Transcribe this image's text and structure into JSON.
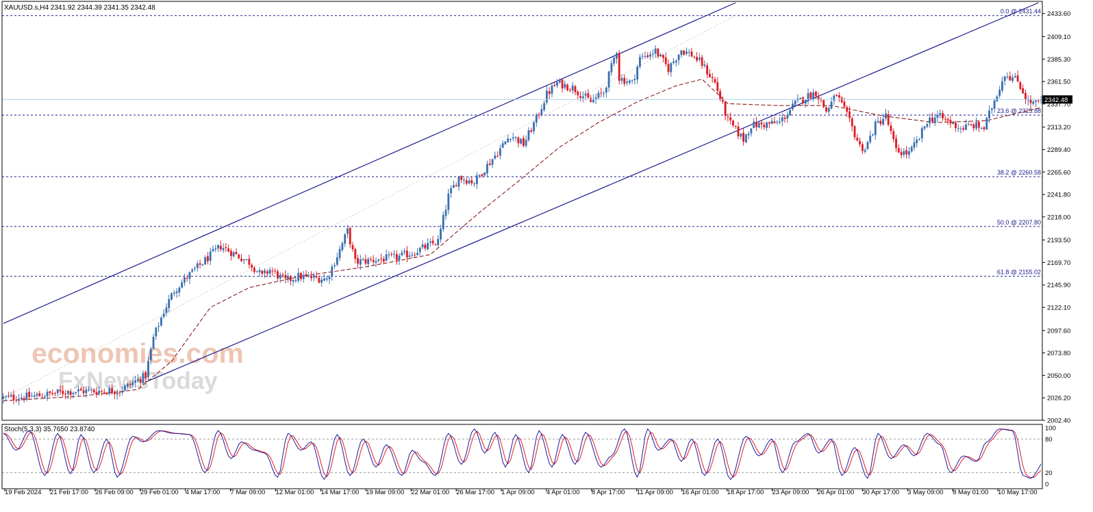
{
  "header": {
    "text": "XAUUSD.s,H4  2341.92 2344.39 2341.35 2342.48"
  },
  "current_price_label": "2342.48",
  "stoch": {
    "label": "Stoch(5,3,3) 35.7650 23.8740",
    "ticks": [
      "100",
      "80",
      "20",
      "0"
    ]
  },
  "watermark": {
    "line1": "economies.com",
    "line2": "FxNewsToday"
  },
  "colors": {
    "bull": "#3a70b0",
    "bear": "#e01b24",
    "channel": "#1a1a8c",
    "fib": "#1a1a8c",
    "ma": "#8b1a1a",
    "stoch_main": "#1a1aa0",
    "stoch_signal": "#e01b24",
    "price_line": "#a8d4ea",
    "watermark": "#e8b39a"
  },
  "chart_data": {
    "type": "candlestick",
    "symbol": "XAUUSD.s",
    "timeframe": "H4",
    "last_ohlc": {
      "open": 2341.92,
      "high": 2344.39,
      "low": 2341.35,
      "close": 2342.48
    },
    "ylim": [
      2002.4,
      2445.0
    ],
    "y_ticks": [
      "2433.60",
      "2409.10",
      "2385.30",
      "2361.50",
      "2337.70",
      "2313.20",
      "2289.40",
      "2265.60",
      "2241.80",
      "2218.00",
      "2193.50",
      "2169.70",
      "2145.90",
      "2122.10",
      "2097.60",
      "2073.80",
      "2050.00",
      "2026.20",
      "2002.40"
    ],
    "x_labels": [
      "19 Feb 2024",
      "21 Feb 17:00",
      "26 Feb 09:00",
      "29 Feb 01:00",
      "4 Mar 17:00",
      "7 Mar 09:00",
      "12 Mar 01:00",
      "14 Mar 17:00",
      "19 Mar 09:00",
      "22 Mar 01:00",
      "26 Mar 17:00",
      "1 Apr 09:00",
      "4 Apr 01:00",
      "8 Apr 17:00",
      "11 Apr 09:00",
      "16 Apr 01:00",
      "18 Apr 17:00",
      "23 Apr 09:00",
      "26 Apr 01:00",
      "30 Apr 17:00",
      "3 May 09:00",
      "8 May 01:00",
      "10 May 17:00"
    ],
    "fib_levels": [
      {
        "label": "0.0 @ 2431.44",
        "price": 2431.44
      },
      {
        "label": "23.6 @ 2325.88",
        "price": 2325.88
      },
      {
        "label": "38.2 @ 2260.58",
        "price": 2260.58
      },
      {
        "label": "50.0 @ 2207.80",
        "price": 2207.8
      },
      {
        "label": "61.8 @ 2155.02",
        "price": 2155.02
      }
    ],
    "path_anchors": [
      [
        0,
        2026
      ],
      [
        12,
        2028
      ],
      [
        25,
        2033
      ],
      [
        45,
        2034
      ],
      [
        55,
        2050
      ],
      [
        58,
        2090
      ],
      [
        62,
        2118
      ],
      [
        66,
        2140
      ],
      [
        72,
        2157
      ],
      [
        84,
        2187
      ],
      [
        95,
        2170
      ],
      [
        100,
        2155
      ],
      [
        103,
        2162
      ],
      [
        109,
        2150
      ],
      [
        114,
        2155
      ],
      [
        125,
        2152
      ],
      [
        130,
        2183
      ],
      [
        133,
        2203
      ],
      [
        136,
        2170
      ],
      [
        142,
        2172
      ],
      [
        152,
        2175
      ],
      [
        158,
        2180
      ],
      [
        168,
        2192
      ],
      [
        172,
        2240
      ],
      [
        176,
        2260
      ],
      [
        182,
        2255
      ],
      [
        192,
        2290
      ],
      [
        196,
        2305
      ],
      [
        201,
        2295
      ],
      [
        206,
        2322
      ],
      [
        210,
        2348
      ],
      [
        214,
        2360
      ],
      [
        220,
        2355
      ],
      [
        227,
        2340
      ],
      [
        232,
        2350
      ],
      [
        236,
        2386
      ],
      [
        237,
        2395
      ],
      [
        238,
        2365
      ],
      [
        243,
        2360
      ],
      [
        246,
        2386
      ],
      [
        252,
        2394
      ],
      [
        257,
        2375
      ],
      [
        262,
        2395
      ],
      [
        266,
        2390
      ],
      [
        270,
        2380
      ],
      [
        275,
        2360
      ],
      [
        280,
        2320
      ],
      [
        286,
        2300
      ],
      [
        289,
        2315
      ],
      [
        294,
        2316
      ],
      [
        300,
        2318
      ],
      [
        306,
        2338
      ],
      [
        310,
        2345
      ],
      [
        314,
        2350
      ],
      [
        318,
        2330
      ],
      [
        322,
        2348
      ],
      [
        326,
        2325
      ],
      [
        331,
        2293
      ],
      [
        333,
        2290
      ],
      [
        337,
        2315
      ],
      [
        341,
        2325
      ],
      [
        345,
        2288
      ],
      [
        350,
        2285
      ],
      [
        354,
        2302
      ],
      [
        357,
        2320
      ],
      [
        361,
        2325
      ],
      [
        366,
        2318
      ],
      [
        370,
        2312
      ],
      [
        375,
        2315
      ],
      [
        379,
        2312
      ],
      [
        383,
        2342
      ],
      [
        387,
        2370
      ],
      [
        392,
        2362
      ],
      [
        396,
        2340
      ],
      [
        399,
        2338
      ],
      [
        401,
        2342
      ]
    ],
    "candle_count": 402,
    "channel_lines": [
      {
        "name": "upper",
        "p1": {
          "bar": 0,
          "price": 2105
        },
        "p2": {
          "bar": 283,
          "price": 2445
        }
      },
      {
        "name": "lower",
        "p1": {
          "bar": 55,
          "price": 2043
        },
        "p2": {
          "bar": 400,
          "price": 2445
        }
      }
    ],
    "moving_average_anchors": [
      [
        0,
        2023
      ],
      [
        30,
        2028
      ],
      [
        52,
        2035
      ],
      [
        65,
        2065
      ],
      [
        80,
        2122
      ],
      [
        95,
        2143
      ],
      [
        115,
        2155
      ],
      [
        140,
        2165
      ],
      [
        165,
        2178
      ],
      [
        185,
        2225
      ],
      [
        200,
        2258
      ],
      [
        215,
        2292
      ],
      [
        230,
        2318
      ],
      [
        245,
        2340
      ],
      [
        260,
        2357
      ],
      [
        270,
        2364
      ],
      [
        280,
        2338
      ],
      [
        300,
        2336
      ],
      [
        320,
        2336
      ],
      [
        340,
        2325
      ],
      [
        360,
        2318
      ],
      [
        380,
        2320
      ],
      [
        401,
        2334
      ]
    ],
    "stochastic": {
      "k_period": 5,
      "d_period": 3,
      "slowing": 3,
      "main_last": 35.765,
      "signal_last": 23.874,
      "levels": [
        80,
        20
      ],
      "peaks": [
        [
          0,
          90
        ],
        [
          5,
          60
        ],
        [
          10,
          95
        ],
        [
          16,
          15
        ],
        [
          21,
          90
        ],
        [
          26,
          18
        ],
        [
          30,
          88
        ],
        [
          35,
          20
        ],
        [
          40,
          80
        ],
        [
          44,
          12
        ],
        [
          50,
          85
        ],
        [
          54,
          75
        ],
        [
          60,
          95
        ],
        [
          66,
          90
        ],
        [
          72,
          88
        ],
        [
          78,
          20
        ],
        [
          83,
          95
        ],
        [
          88,
          45
        ],
        [
          92,
          75
        ],
        [
          97,
          60
        ],
        [
          101,
          55
        ],
        [
          106,
          12
        ],
        [
          110,
          90
        ],
        [
          115,
          60
        ],
        [
          119,
          75
        ],
        [
          124,
          8
        ],
        [
          129,
          88
        ],
        [
          134,
          15
        ],
        [
          139,
          80
        ],
        [
          144,
          30
        ],
        [
          148,
          70
        ],
        [
          154,
          15
        ],
        [
          158,
          60
        ],
        [
          162,
          40
        ],
        [
          167,
          15
        ],
        [
          172,
          90
        ],
        [
          177,
          35
        ],
        [
          182,
          98
        ],
        [
          186,
          55
        ],
        [
          190,
          92
        ],
        [
          194,
          30
        ],
        [
          198,
          88
        ],
        [
          203,
          20
        ],
        [
          207,
          95
        ],
        [
          212,
          30
        ],
        [
          216,
          88
        ],
        [
          221,
          35
        ],
        [
          225,
          92
        ],
        [
          231,
          30
        ],
        [
          235,
          50
        ],
        [
          240,
          98
        ],
        [
          245,
          12
        ],
        [
          249,
          98
        ],
        [
          253,
          60
        ],
        [
          258,
          80
        ],
        [
          262,
          40
        ],
        [
          266,
          80
        ],
        [
          271,
          15
        ],
        [
          276,
          80
        ],
        [
          281,
          8
        ],
        [
          287,
          85
        ],
        [
          292,
          50
        ],
        [
          297,
          80
        ],
        [
          301,
          20
        ],
        [
          306,
          75
        ],
        [
          311,
          90
        ],
        [
          315,
          55
        ],
        [
          320,
          80
        ],
        [
          324,
          15
        ],
        [
          329,
          65
        ],
        [
          334,
          10
        ],
        [
          338,
          90
        ],
        [
          343,
          45
        ],
        [
          348,
          70
        ],
        [
          352,
          50
        ],
        [
          357,
          90
        ],
        [
          362,
          70
        ],
        [
          366,
          20
        ],
        [
          371,
          50
        ],
        [
          376,
          40
        ],
        [
          380,
          75
        ],
        [
          385,
          98
        ],
        [
          390,
          95
        ],
        [
          394,
          15
        ],
        [
          397,
          10
        ],
        [
          401,
          30
        ]
      ]
    }
  }
}
